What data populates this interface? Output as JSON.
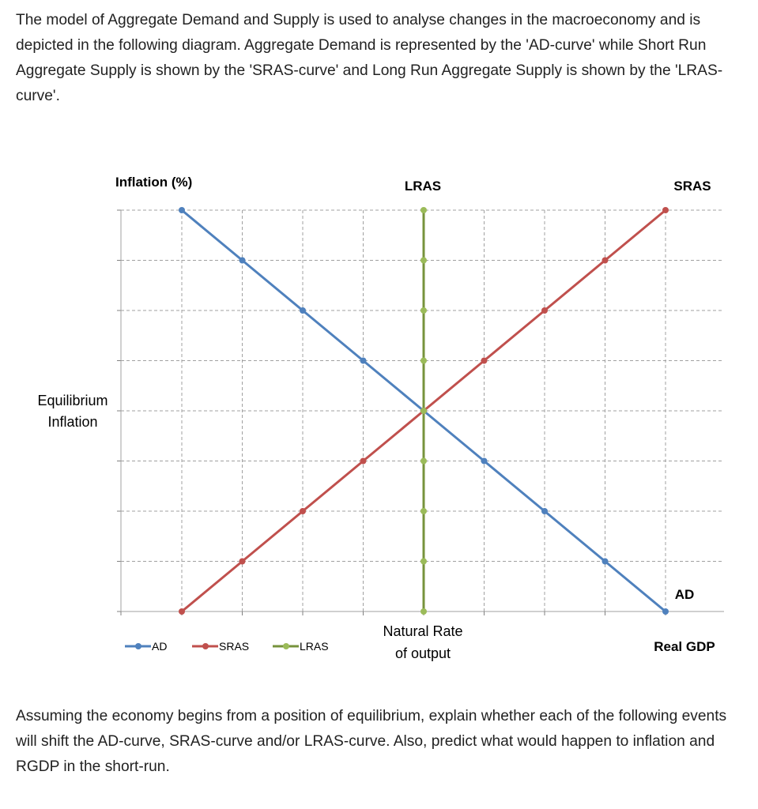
{
  "intro_text": "The model of Aggregate Demand and Supply is used to analyse changes in the macroeconomy and is depicted in the following diagram. Aggregate Demand is represented by the 'AD-curve' while Short Run Aggregate Supply is shown by the 'SRAS-curve' and Long Run Aggregate Supply is shown by the 'LRAS-curve'.",
  "question_text": "Assuming the economy begins from a position of equilibrium, explain whether each of the following events will shift the AD-curve, SRAS-curve and/or LRAS-curve. Also, predict what would happen to inflation and RGDP in the short-run.",
  "chart_data": {
    "type": "line",
    "ylabel": "Inflation (%)",
    "xlabel": "Real GDP",
    "xlim": [
      0,
      9
    ],
    "ylim": [
      0,
      8
    ],
    "grid": true,
    "legend_position": "bottom-left",
    "annotations": {
      "equilibrium_line1": "Equilibrium",
      "equilibrium_line2": "Inflation",
      "natural_rate_line1": "Natural Rate",
      "natural_rate_line2": "of output",
      "lras_label": "LRAS",
      "sras_label": "SRAS",
      "ad_label": "AD"
    },
    "series": [
      {
        "name": "AD",
        "color": "#4f81bd",
        "points": [
          [
            1,
            8
          ],
          [
            2,
            7
          ],
          [
            3,
            6
          ],
          [
            4,
            5
          ],
          [
            5,
            4
          ],
          [
            6,
            3
          ],
          [
            7,
            2
          ],
          [
            8,
            1
          ],
          [
            9,
            0
          ]
        ]
      },
      {
        "name": "SRAS",
        "color": "#c0504d",
        "points": [
          [
            1,
            0
          ],
          [
            2,
            1
          ],
          [
            3,
            2
          ],
          [
            4,
            3
          ],
          [
            5,
            4
          ],
          [
            6,
            5
          ],
          [
            7,
            6
          ],
          [
            8,
            7
          ],
          [
            9,
            8
          ]
        ]
      },
      {
        "name": "LRAS",
        "color": "#9bbb59",
        "line_color": "#77933c",
        "points": [
          [
            5,
            0
          ],
          [
            5,
            1
          ],
          [
            5,
            2
          ],
          [
            5,
            3
          ],
          [
            5,
            4
          ],
          [
            5,
            5
          ],
          [
            5,
            6
          ],
          [
            5,
            7
          ],
          [
            5,
            8
          ]
        ]
      }
    ]
  }
}
